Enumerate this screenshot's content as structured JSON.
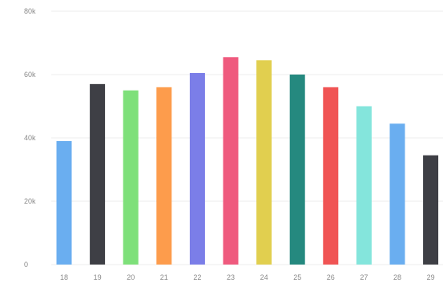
{
  "chart_data": {
    "type": "bar",
    "categories": [
      "18",
      "19",
      "20",
      "21",
      "22",
      "23",
      "24",
      "25",
      "26",
      "27",
      "28",
      "29"
    ],
    "values": [
      39000,
      57000,
      55000,
      56000,
      60500,
      65500,
      64500,
      60000,
      56000,
      50000,
      44500,
      34500
    ],
    "colors": [
      "#6aaef0",
      "#3e3f45",
      "#7ee07a",
      "#fd9c4c",
      "#7b7ee8",
      "#ef5a7e",
      "#e1cf4f",
      "#25897f",
      "#f05454",
      "#84e5dc",
      "#6aaef0",
      "#3e3f45"
    ],
    "yticks": [
      {
        "value": 0,
        "label": "0"
      },
      {
        "value": 20000,
        "label": "20k"
      },
      {
        "value": 40000,
        "label": "40k"
      },
      {
        "value": 60000,
        "label": "60k"
      },
      {
        "value": 80000,
        "label": "80k"
      }
    ],
    "ylim": [
      0,
      80000
    ],
    "grid": true,
    "title": "",
    "xlabel": "",
    "ylabel": ""
  }
}
